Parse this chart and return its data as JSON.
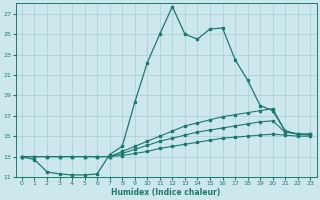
{
  "xlabel": "Humidex (Indice chaleur)",
  "bg_color": "#cce8ed",
  "grid_color": "#aacdd5",
  "line_color": "#1a7a6e",
  "xlim": [
    -0.5,
    23.5
  ],
  "ylim": [
    11,
    28
  ],
  "yticks": [
    11,
    13,
    15,
    17,
    19,
    21,
    23,
    25,
    27
  ],
  "xticks": [
    0,
    1,
    2,
    3,
    4,
    5,
    6,
    7,
    8,
    9,
    10,
    11,
    12,
    13,
    14,
    15,
    16,
    17,
    18,
    19,
    20,
    21,
    22,
    23
  ],
  "series": [
    {
      "x": [
        0,
        1,
        2,
        3,
        4,
        5,
        6,
        7,
        8,
        9,
        10,
        11,
        12,
        13,
        14,
        15,
        16,
        17,
        18,
        19,
        20,
        21,
        22,
        23
      ],
      "y": [
        13,
        12.7,
        11.5,
        11.3,
        11.2,
        11.2,
        11.3,
        13.2,
        14.0,
        18.3,
        22.2,
        25.0,
        27.7,
        25.0,
        24.5,
        25.5,
        25.6,
        22.5,
        20.5,
        18.0,
        17.5,
        15.5,
        15.2,
        15.2
      ]
    },
    {
      "x": [
        0,
        1,
        2,
        3,
        4,
        5,
        6,
        7,
        8,
        9,
        10,
        11,
        12,
        13,
        14,
        15,
        16,
        17,
        18,
        19,
        20,
        21,
        22,
        23
      ],
      "y": [
        13,
        13,
        13,
        13,
        13,
        13,
        13,
        13,
        13.5,
        14.0,
        14.5,
        15.0,
        15.5,
        16.0,
        16.3,
        16.6,
        16.9,
        17.1,
        17.3,
        17.5,
        17.7,
        15.5,
        15.2,
        15.2
      ]
    },
    {
      "x": [
        0,
        1,
        2,
        3,
        4,
        5,
        6,
        7,
        8,
        9,
        10,
        11,
        12,
        13,
        14,
        15,
        16,
        17,
        18,
        19,
        20,
        21,
        22,
        23
      ],
      "y": [
        13,
        13,
        13,
        13,
        13,
        13,
        13,
        13,
        13.3,
        13.7,
        14.1,
        14.5,
        14.8,
        15.1,
        15.4,
        15.6,
        15.8,
        16.0,
        16.2,
        16.4,
        16.5,
        15.4,
        15.2,
        15.1
      ]
    },
    {
      "x": [
        0,
        1,
        2,
        3,
        4,
        5,
        6,
        7,
        8,
        9,
        10,
        11,
        12,
        13,
        14,
        15,
        16,
        17,
        18,
        19,
        20,
        21,
        22,
        23
      ],
      "y": [
        13,
        13,
        13,
        13,
        13,
        13,
        13,
        13,
        13.1,
        13.3,
        13.5,
        13.8,
        14.0,
        14.2,
        14.4,
        14.6,
        14.8,
        14.9,
        15.0,
        15.1,
        15.2,
        15.1,
        15.0,
        15.0
      ]
    }
  ]
}
